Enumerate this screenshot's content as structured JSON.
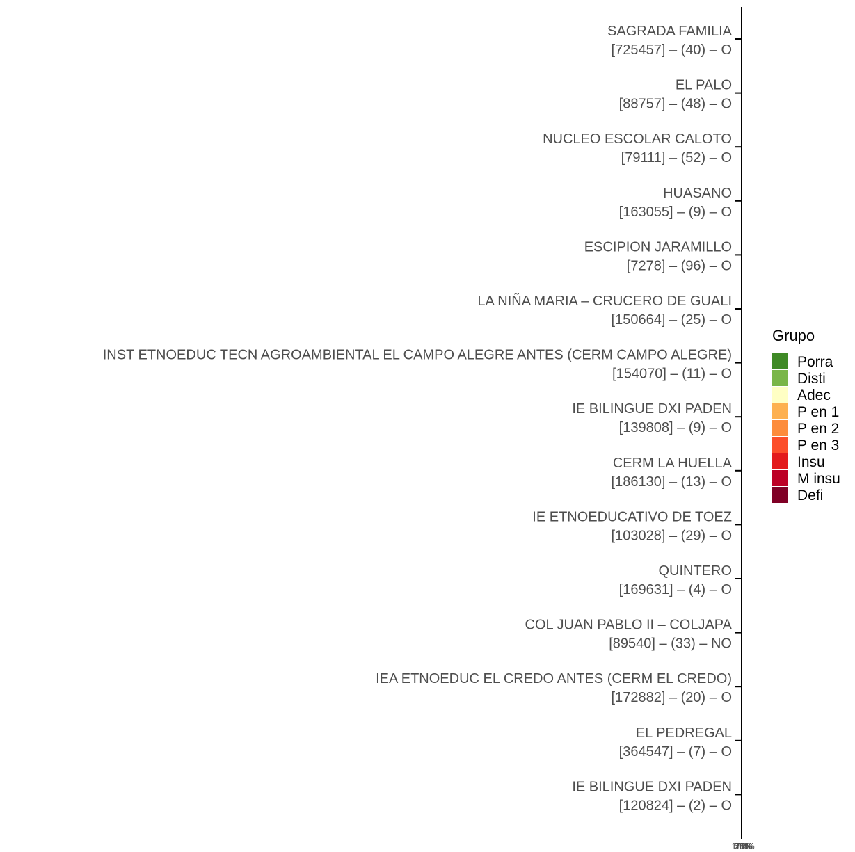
{
  "chart_data": {
    "type": "bar",
    "orientation": "horizontal",
    "stacked": true,
    "categories": [
      {
        "name": "SAGRADA FAMILIA",
        "info": "[725457] – (40) – O"
      },
      {
        "name": "EL PALO",
        "info": "[88757] – (48) – O"
      },
      {
        "name": "NUCLEO ESCOLAR CALOTO",
        "info": "[79111] – (52) – O"
      },
      {
        "name": "HUASANO",
        "info": "[163055] – (9) – O"
      },
      {
        "name": "ESCIPION JARAMILLO",
        "info": "[7278] – (96) – O"
      },
      {
        "name": "LA NIÑA MARIA – CRUCERO DE GUALI",
        "info": "[150664] – (25) – O"
      },
      {
        "name": "INST ETNOEDUC TECN AGROAMBIENTAL EL CAMPO ALEGRE ANTES (CERM CAMPO ALEGRE)",
        "info": "[154070] – (11) – O"
      },
      {
        "name": "IE BILINGUE DXI PADEN",
        "info": "[139808] – (9) – O"
      },
      {
        "name": "CERM LA HUELLA",
        "info": "[186130] – (13) – O"
      },
      {
        "name": "IE ETNOEDUCATIVO DE TOEZ",
        "info": "[103028] – (29) – O"
      },
      {
        "name": "QUINTERO",
        "info": "[169631] – (4) – O"
      },
      {
        "name": "COL  JUAN PABLO II – COLJAPA",
        "info": "[89540] – (33) – NO"
      },
      {
        "name": "IEA ETNOEDUC EL CREDO ANTES (CERM EL CREDO)",
        "info": "[172882] – (20) – O"
      },
      {
        "name": "EL PEDREGAL",
        "info": "[364547] – (7) – O"
      },
      {
        "name": "IE BILINGUE DXI PADEN",
        "info": "[120824] – (2) – O"
      }
    ],
    "series": [],
    "x_tick_labels": [
      "0%",
      "25%",
      "50%",
      "75%",
      "100%"
    ],
    "legend": {
      "title": "Grupo",
      "position": "right",
      "items": [
        {
          "label": "Porra",
          "color": "#3f8a26"
        },
        {
          "label": "Disti",
          "color": "#7ab648"
        },
        {
          "label": "Adec",
          "color": "#ffffc4"
        },
        {
          "label": "P en 1",
          "color": "#fdb050"
        },
        {
          "label": "P en 2",
          "color": "#fd8c3c"
        },
        {
          "label": "P en 3",
          "color": "#fc4e2a"
        },
        {
          "label": "Insu",
          "color": "#e31a1c"
        },
        {
          "label": "M insu",
          "color": "#bd0026"
        },
        {
          "label": "Defi",
          "color": "#800026"
        }
      ]
    },
    "grid": false
  }
}
